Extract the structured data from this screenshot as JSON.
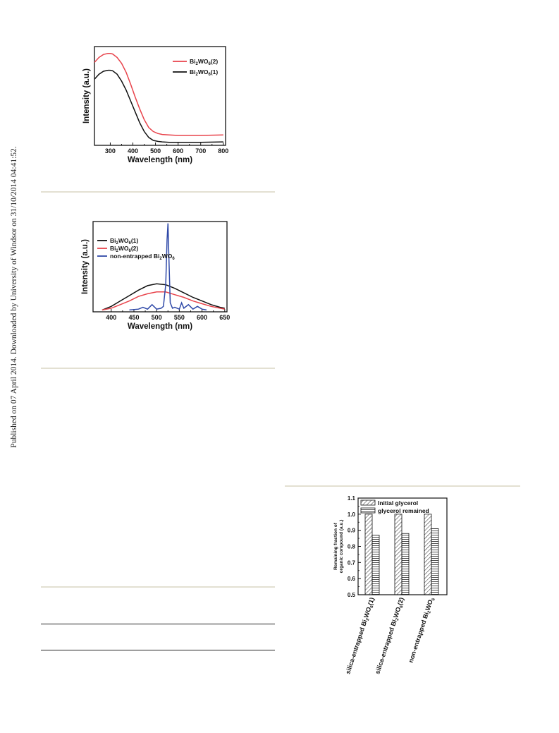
{
  "page": {
    "side_note": "Published on 07 April 2014. Downloaded by University of Windsor on 31/10/2014 04:41:52."
  },
  "chart_data": [
    {
      "type": "line",
      "xlabel": "Wavelength (nm)",
      "ylabel": "Intensity (a.u.)",
      "xlim": [
        230,
        810
      ],
      "ylim": [
        0,
        1
      ],
      "xticks": [
        300,
        400,
        500,
        600,
        700,
        800
      ],
      "yticks_shown": false,
      "legend_placement": "top-right",
      "series": [
        {
          "name": "Bi₂WO₆(2)",
          "color": "#e8434b",
          "x": [
            230,
            250,
            270,
            290,
            300,
            310,
            330,
            350,
            370,
            390,
            410,
            430,
            450,
            470,
            490,
            510,
            530,
            560,
            600,
            700,
            800
          ],
          "y": [
            0.84,
            0.89,
            0.92,
            0.93,
            0.93,
            0.925,
            0.89,
            0.83,
            0.74,
            0.62,
            0.49,
            0.37,
            0.26,
            0.18,
            0.14,
            0.12,
            0.11,
            0.105,
            0.1,
            0.1,
            0.105
          ]
        },
        {
          "name": "Bi₂WO₆(1)",
          "color": "#111111",
          "x": [
            230,
            250,
            270,
            290,
            300,
            310,
            330,
            350,
            370,
            390,
            410,
            430,
            450,
            470,
            490,
            510,
            530,
            560,
            600,
            700,
            800
          ],
          "y": [
            0.67,
            0.72,
            0.75,
            0.76,
            0.76,
            0.755,
            0.72,
            0.65,
            0.56,
            0.45,
            0.34,
            0.23,
            0.14,
            0.08,
            0.05,
            0.04,
            0.035,
            0.03,
            0.03,
            0.03,
            0.035
          ]
        }
      ]
    },
    {
      "type": "line",
      "xlabel": "Wavelength (nm)",
      "ylabel": "Intensity (a.u.)",
      "xlim": [
        360,
        655
      ],
      "ylim": [
        0,
        1
      ],
      "xticks": [
        400,
        450,
        500,
        550,
        600,
        650
      ],
      "yticks_shown": false,
      "legend_placement": "left",
      "series": [
        {
          "name": "Bi₂WO₆(1)",
          "color": "#111111",
          "x": [
            380,
            400,
            420,
            440,
            460,
            480,
            500,
            520,
            540,
            560,
            580,
            600,
            620,
            640,
            650
          ],
          "y": [
            0.02,
            0.06,
            0.12,
            0.18,
            0.24,
            0.29,
            0.31,
            0.3,
            0.26,
            0.21,
            0.16,
            0.12,
            0.08,
            0.05,
            0.04
          ]
        },
        {
          "name": "Bi₂WO₆(2)",
          "color": "#e8434b",
          "x": [
            380,
            400,
            420,
            440,
            460,
            480,
            500,
            520,
            540,
            560,
            580,
            600,
            620,
            640,
            650
          ],
          "y": [
            0.02,
            0.04,
            0.08,
            0.12,
            0.17,
            0.2,
            0.22,
            0.22,
            0.19,
            0.16,
            0.12,
            0.09,
            0.06,
            0.04,
            0.03
          ]
        },
        {
          "name": "non-entrapped Bi₂WO₆",
          "color": "#2f49a8",
          "x": [
            440,
            460,
            470,
            480,
            490,
            500,
            510,
            515,
            520,
            523,
            525,
            527,
            530,
            535,
            540,
            550,
            555,
            560,
            570,
            580,
            590,
            600,
            610
          ],
          "y": [
            0.02,
            0.03,
            0.05,
            0.03,
            0.08,
            0.03,
            0.04,
            0.06,
            0.3,
            0.8,
            0.98,
            0.6,
            0.1,
            0.04,
            0.05,
            0.03,
            0.1,
            0.04,
            0.08,
            0.03,
            0.06,
            0.03,
            0.02
          ]
        }
      ]
    },
    {
      "type": "bar",
      "ylabel": "Remaining fraction of organic compound (a.u.)",
      "ylim": [
        0.5,
        1.1
      ],
      "yticks": [
        0.5,
        0.6,
        0.7,
        0.8,
        0.9,
        1.0,
        1.1
      ],
      "categories": [
        "silica-entrapped Bi₂WO₆(1)",
        "silica-entrapped Bi₂WO₆(2)",
        "non-entrapped Bi₂WO₆"
      ],
      "legend_placement": "top",
      "series": [
        {
          "name": "Initial glycerol",
          "pattern": "diagonal-hatch",
          "values": [
            1.0,
            1.0,
            1.0
          ]
        },
        {
          "name": "glycerol remained",
          "pattern": "horizontal-hatch",
          "values": [
            0.87,
            0.88,
            0.91
          ]
        }
      ]
    }
  ]
}
